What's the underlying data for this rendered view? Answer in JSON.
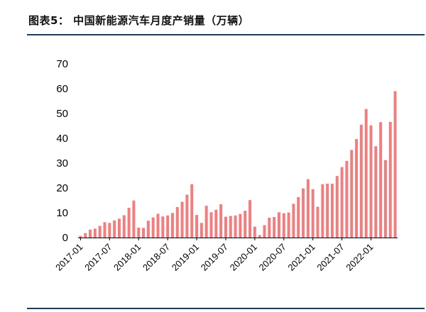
{
  "header": {
    "title": "图表5：  中国新能源汽车月度产销量（万辆）"
  },
  "chart_data": {
    "type": "bar",
    "title": "",
    "xlabel": "",
    "ylabel": "",
    "ylim": [
      0,
      70
    ],
    "yticks": [
      0,
      10,
      20,
      30,
      40,
      50,
      60,
      70
    ],
    "bar_color": "#f47c7c",
    "axis_color": "#000000",
    "x_tick_labels": [
      "2017-01",
      "2017-07",
      "2018-01",
      "2018-07",
      "2019-01",
      "2019-07",
      "2020-01",
      "2020-07",
      "2021-01",
      "2021-07",
      "2022-01"
    ],
    "categories": [
      "2017-01",
      "2017-02",
      "2017-03",
      "2017-04",
      "2017-05",
      "2017-06",
      "2017-07",
      "2017-08",
      "2017-09",
      "2017-10",
      "2017-11",
      "2017-12",
      "2018-01",
      "2018-02",
      "2018-03",
      "2018-04",
      "2018-05",
      "2018-06",
      "2018-07",
      "2018-08",
      "2018-09",
      "2018-10",
      "2018-11",
      "2018-12",
      "2019-01",
      "2019-02",
      "2019-03",
      "2019-04",
      "2019-05",
      "2019-06",
      "2019-07",
      "2019-08",
      "2019-09",
      "2019-10",
      "2019-11",
      "2019-12",
      "2020-01",
      "2020-02",
      "2020-03",
      "2020-04",
      "2020-05",
      "2020-06",
      "2020-07",
      "2020-08",
      "2020-09",
      "2020-10",
      "2020-11",
      "2020-12",
      "2021-01",
      "2021-02",
      "2021-03",
      "2021-04",
      "2021-05",
      "2021-06",
      "2021-07",
      "2021-08",
      "2021-09",
      "2021-10",
      "2021-11",
      "2021-12",
      "2022-01",
      "2022-02",
      "2022-03",
      "2022-04",
      "2022-05",
      "2022-06"
    ],
    "values": [
      0.7,
      1.8,
      3.2,
      3.6,
      4.7,
      6.2,
      5.9,
      6.9,
      7.6,
      9.0,
      12.0,
      14.9,
      4.0,
      3.9,
      6.8,
      8.1,
      9.6,
      8.5,
      8.9,
      9.9,
      12.3,
      14.4,
      17.3,
      21.5,
      9.1,
      5.9,
      12.8,
      10.2,
      11.2,
      13.4,
      8.4,
      8.7,
      8.9,
      9.5,
      10.8,
      15.1,
      4.4,
      1.0,
      5.0,
      8.0,
      8.3,
      10.2,
      9.8,
      10.1,
      13.6,
      16.3,
      19.8,
      23.5,
      19.5,
      12.4,
      21.5,
      21.7,
      21.7,
      24.8,
      28.4,
      30.9,
      35.3,
      39.7,
      45.5,
      51.8,
      45.2,
      36.8,
      46.5,
      31.2,
      46.6,
      59.0
    ]
  }
}
